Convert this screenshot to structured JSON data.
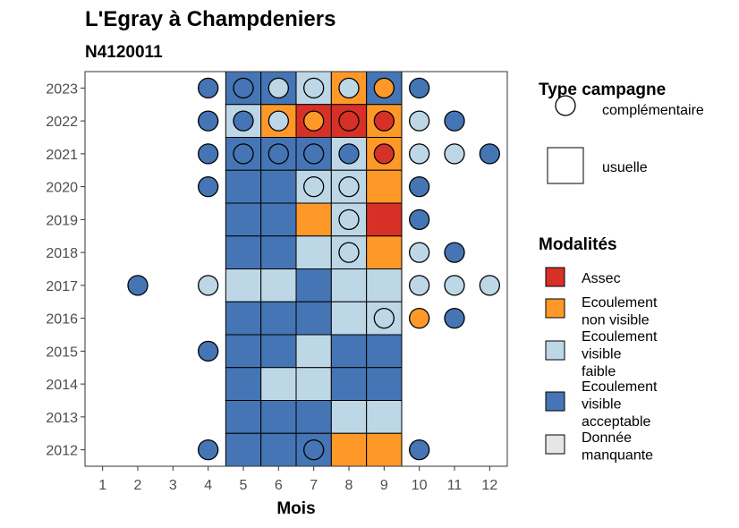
{
  "chart_data": {
    "type": "heatmap",
    "title": "L'Egray à Champdeniers",
    "subtitle": "N4120011",
    "xlabel": "Mois",
    "ylabel": "",
    "x_ticks": [
      "1",
      "2",
      "3",
      "4",
      "5",
      "6",
      "7",
      "8",
      "9",
      "10",
      "11",
      "12"
    ],
    "y_ticks": [
      "2012",
      "2013",
      "2014",
      "2015",
      "2016",
      "2017",
      "2018",
      "2019",
      "2020",
      "2021",
      "2022",
      "2023"
    ],
    "xlim": [
      0.5,
      12.5
    ],
    "ylim": [
      2011.5,
      2023.5
    ],
    "grid": false,
    "legend_position": "right",
    "colors": {
      "assec": "#d73027",
      "non_visible": "#fe9929",
      "faible": "#bdd7e7",
      "acceptable": "#4575b4",
      "manquante": "#e6e6e6"
    },
    "legend_type": {
      "title": "Type campagne",
      "items": [
        {
          "label": "complémentaire",
          "shape": "circle"
        },
        {
          "label": "usuelle",
          "shape": "square"
        }
      ]
    },
    "legend_modalites": {
      "title": "Modalités",
      "items": [
        {
          "key": "assec",
          "lines": [
            "Assec"
          ]
        },
        {
          "key": "non_visible",
          "lines": [
            "Ecoulement",
            "non visible"
          ]
        },
        {
          "key": "faible",
          "lines": [
            "Ecoulement",
            "visible",
            "faible"
          ]
        },
        {
          "key": "acceptable",
          "lines": [
            "Ecoulement",
            "visible",
            "acceptable"
          ]
        },
        {
          "key": "manquante",
          "lines": [
            "Donnée",
            "manquante"
          ]
        }
      ]
    },
    "usuelle": [
      {
        "year": 2023,
        "cells": {
          "5": "acceptable",
          "6": "acceptable",
          "7": "faible",
          "8": "non_visible",
          "9": "acceptable"
        }
      },
      {
        "year": 2022,
        "cells": {
          "5": "faible",
          "6": "non_visible",
          "7": "assec",
          "8": "assec",
          "9": "non_visible"
        }
      },
      {
        "year": 2021,
        "cells": {
          "5": "acceptable",
          "6": "acceptable",
          "7": "acceptable",
          "8": "faible",
          "9": "non_visible"
        }
      },
      {
        "year": 2020,
        "cells": {
          "5": "acceptable",
          "6": "acceptable",
          "7": "faible",
          "8": "faible",
          "9": "non_visible"
        }
      },
      {
        "year": 2019,
        "cells": {
          "5": "acceptable",
          "6": "acceptable",
          "7": "non_visible",
          "8": "faible",
          "9": "assec"
        }
      },
      {
        "year": 2018,
        "cells": {
          "5": "acceptable",
          "6": "acceptable",
          "7": "faible",
          "8": "faible",
          "9": "non_visible"
        }
      },
      {
        "year": 2017,
        "cells": {
          "5": "faible",
          "6": "faible",
          "7": "acceptable",
          "8": "faible",
          "9": "faible"
        }
      },
      {
        "year": 2016,
        "cells": {
          "5": "acceptable",
          "6": "acceptable",
          "7": "acceptable",
          "8": "faible",
          "9": "faible"
        }
      },
      {
        "year": 2015,
        "cells": {
          "5": "acceptable",
          "6": "acceptable",
          "7": "faible",
          "8": "acceptable",
          "9": "acceptable"
        }
      },
      {
        "year": 2014,
        "cells": {
          "5": "acceptable",
          "6": "faible",
          "7": "faible",
          "8": "acceptable",
          "9": "acceptable"
        }
      },
      {
        "year": 2013,
        "cells": {
          "5": "acceptable",
          "6": "acceptable",
          "7": "acceptable",
          "8": "faible",
          "9": "faible"
        }
      },
      {
        "year": 2012,
        "cells": {
          "5": "acceptable",
          "6": "acceptable",
          "7": "acceptable",
          "8": "non_visible",
          "9": "non_visible"
        }
      }
    ],
    "complementaire": [
      {
        "year": 2023,
        "month": 4,
        "value": "acceptable"
      },
      {
        "year": 2023,
        "month": 5,
        "value": "acceptable"
      },
      {
        "year": 2023,
        "month": 6,
        "value": "faible"
      },
      {
        "year": 2023,
        "month": 7,
        "value": "faible"
      },
      {
        "year": 2023,
        "month": 8,
        "value": "faible"
      },
      {
        "year": 2023,
        "month": 9,
        "value": "non_visible"
      },
      {
        "year": 2023,
        "month": 10,
        "value": "acceptable"
      },
      {
        "year": 2022,
        "month": 4,
        "value": "acceptable"
      },
      {
        "year": 2022,
        "month": 5,
        "value": "acceptable"
      },
      {
        "year": 2022,
        "month": 6,
        "value": "faible"
      },
      {
        "year": 2022,
        "month": 7,
        "value": "non_visible"
      },
      {
        "year": 2022,
        "month": 8,
        "value": "assec"
      },
      {
        "year": 2022,
        "month": 9,
        "value": "assec"
      },
      {
        "year": 2022,
        "month": 10,
        "value": "faible"
      },
      {
        "year": 2022,
        "month": 11,
        "value": "acceptable"
      },
      {
        "year": 2021,
        "month": 4,
        "value": "acceptable"
      },
      {
        "year": 2021,
        "month": 5,
        "value": "acceptable"
      },
      {
        "year": 2021,
        "month": 6,
        "value": "acceptable"
      },
      {
        "year": 2021,
        "month": 7,
        "value": "acceptable"
      },
      {
        "year": 2021,
        "month": 8,
        "value": "acceptable"
      },
      {
        "year": 2021,
        "month": 9,
        "value": "assec"
      },
      {
        "year": 2021,
        "month": 10,
        "value": "faible"
      },
      {
        "year": 2021,
        "month": 11,
        "value": "faible"
      },
      {
        "year": 2021,
        "month": 12,
        "value": "acceptable"
      },
      {
        "year": 2020,
        "month": 4,
        "value": "acceptable"
      },
      {
        "year": 2020,
        "month": 7,
        "value": "faible"
      },
      {
        "year": 2020,
        "month": 8,
        "value": "faible"
      },
      {
        "year": 2020,
        "month": 10,
        "value": "acceptable"
      },
      {
        "year": 2019,
        "month": 8,
        "value": "faible"
      },
      {
        "year": 2019,
        "month": 10,
        "value": "acceptable"
      },
      {
        "year": 2018,
        "month": 8,
        "value": "faible"
      },
      {
        "year": 2018,
        "month": 10,
        "value": "faible"
      },
      {
        "year": 2018,
        "month": 11,
        "value": "acceptable"
      },
      {
        "year": 2017,
        "month": 2,
        "value": "acceptable"
      },
      {
        "year": 2017,
        "month": 4,
        "value": "faible"
      },
      {
        "year": 2017,
        "month": 10,
        "value": "faible"
      },
      {
        "year": 2017,
        "month": 11,
        "value": "faible"
      },
      {
        "year": 2017,
        "month": 12,
        "value": "faible"
      },
      {
        "year": 2016,
        "month": 9,
        "value": "faible"
      },
      {
        "year": 2016,
        "month": 10,
        "value": "non_visible"
      },
      {
        "year": 2016,
        "month": 11,
        "value": "acceptable"
      },
      {
        "year": 2015,
        "month": 4,
        "value": "acceptable"
      },
      {
        "year": 2012,
        "month": 4,
        "value": "acceptable"
      },
      {
        "year": 2012,
        "month": 7,
        "value": "acceptable"
      },
      {
        "year": 2012,
        "month": 10,
        "value": "acceptable"
      }
    ]
  }
}
